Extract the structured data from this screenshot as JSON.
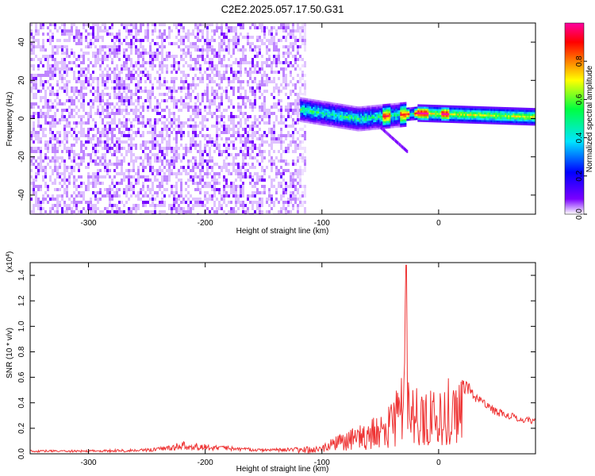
{
  "title": "C2E2.2025.057.17.50.G31",
  "chart_data": [
    {
      "type": "heatmap",
      "xlabel": "Height of straight line (km)",
      "ylabel": "Frequency (Hz)",
      "xlim": [
        -350,
        83
      ],
      "ylim": [
        -50,
        50
      ],
      "xticks": [
        -300,
        -200,
        -100,
        0
      ],
      "yticks": [
        -40,
        -20,
        0,
        20,
        40
      ],
      "grid": false,
      "colorbar": {
        "label": "Normalized spectral amplitude",
        "range": [
          0,
          1
        ],
        "ticks": [
          "0.0",
          "0.2",
          "0.4",
          "0.6",
          "0.8"
        ],
        "colors": [
          "#ffffff",
          "#7a00ff",
          "#0000ff",
          "#00e5ff",
          "#00ff40",
          "#ffff00",
          "#ff7f00",
          "#ff0000",
          "#ff00a0"
        ]
      },
      "regions": [
        {
          "name_desc": "noise",
          "x": [
            -350,
            -120
          ],
          "f_range": [
            -50,
            50
          ],
          "amplitude": 0.1
        },
        {
          "name_desc": "signal",
          "x": [
            -120,
            83
          ],
          "f_center": [
            5,
            0,
            3,
            2,
            1
          ],
          "amplitude_peak": 0.9
        }
      ]
    },
    {
      "type": "line",
      "xlabel": "Height of straight line (km)",
      "ylabel": "SNR (10 * v/v)",
      "scale_label": "(x10",
      "scale_exp": "4",
      "scale_close": ")",
      "xlim": [
        -350,
        83
      ],
      "ylim": [
        0,
        1.5
      ],
      "xticks": [
        -300,
        -200,
        -100,
        0
      ],
      "yticks": [
        "0.0",
        "0.2",
        "0.4",
        "0.6",
        "0.8",
        "1.0",
        "1.2",
        "1.4"
      ],
      "line_color": "#ee3333",
      "series": [
        {
          "x": [
            -350,
            -300,
            -250,
            -220,
            -200,
            -180,
            -150,
            -120,
            -100,
            -90,
            -80,
            -70,
            -60,
            -50,
            -40,
            -35,
            -30,
            -28,
            -25,
            -20,
            -15,
            -10,
            -5,
            0,
            5,
            10,
            15,
            20,
            25,
            30,
            40,
            50,
            60,
            70,
            83
          ],
          "values": [
            0.03,
            0.03,
            0.04,
            0.08,
            0.07,
            0.06,
            0.04,
            0.05,
            0.07,
            0.13,
            0.17,
            0.22,
            0.26,
            0.32,
            0.42,
            0.55,
            0.68,
            1.48,
            0.6,
            0.55,
            0.5,
            0.55,
            0.55,
            0.5,
            0.55,
            0.62,
            0.6,
            0.58,
            0.57,
            0.5,
            0.42,
            0.36,
            0.33,
            0.3,
            0.28
          ]
        }
      ]
    }
  ]
}
